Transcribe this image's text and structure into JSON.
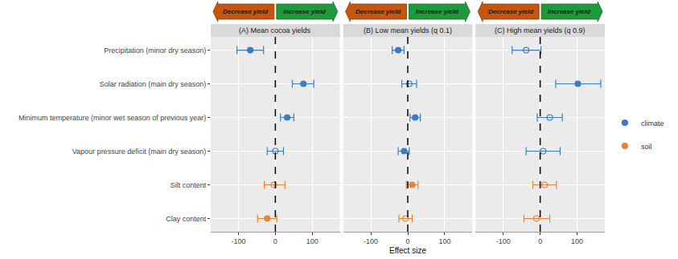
{
  "chart_data": [
    {
      "type": "scatter",
      "title": "(A) Mean cocoa yields",
      "annotations": [
        "Decrease yield",
        "Increase yield"
      ],
      "categories": [
        "Precipitation (minor dry season)",
        "Solar radiation (main dry season)",
        "Minimum temperature (minor wet season of previous year)",
        "Vapour pressure deficit (main dry season)",
        "Silt content",
        "Clay content"
      ],
      "series": [
        {
          "name": "climate",
          "color": "#3b7dbf",
          "values": [
            -68,
            76,
            32,
            0,
            null,
            null
          ],
          "lower": [
            -104,
            46,
            14,
            -22,
            null,
            null
          ],
          "upper": [
            -32,
            104,
            50,
            22,
            null,
            null
          ],
          "marker": [
            "filled",
            "filled",
            "filled",
            "open",
            null,
            null
          ]
        },
        {
          "name": "soil",
          "color": "#e8833a",
          "values": [
            null,
            null,
            null,
            null,
            -4,
            -22
          ],
          "lower": [
            null,
            null,
            null,
            null,
            -30,
            -48
          ],
          "upper": [
            null,
            null,
            null,
            null,
            26,
            4
          ],
          "marker": [
            null,
            null,
            null,
            null,
            "open",
            "filled"
          ]
        }
      ],
      "xlim": [
        -175,
        175
      ],
      "xticks": [
        -100,
        0,
        100
      ],
      "reference_x": 0,
      "grid": true,
      "legend": "right"
    },
    {
      "type": "scatter",
      "title": "(B) Low mean yields (q 0.1)",
      "xlabel": "Effect size",
      "annotations": [
        "Decrease yield",
        "Increase yield"
      ],
      "categories": [
        "Precipitation (minor dry season)",
        "Solar radiation (main dry season)",
        "Minimum temperature (minor wet season of previous year)",
        "Vapour pressure deficit (main dry season)",
        "Silt content",
        "Clay content"
      ],
      "series": [
        {
          "name": "climate",
          "color": "#3b7dbf",
          "values": [
            -26,
            4,
            20,
            -10,
            null,
            null
          ],
          "lower": [
            -42,
            -16,
            6,
            -26,
            null,
            null
          ],
          "upper": [
            -10,
            24,
            34,
            4,
            null,
            null
          ],
          "marker": [
            "filled",
            "open",
            "filled",
            "filled",
            null,
            null
          ]
        },
        {
          "name": "soil",
          "color": "#e8833a",
          "values": [
            null,
            null,
            null,
            null,
            12,
            -6
          ],
          "lower": [
            null,
            null,
            null,
            null,
            -4,
            -24
          ],
          "upper": [
            null,
            null,
            null,
            null,
            28,
            12
          ],
          "marker": [
            null,
            null,
            null,
            null,
            "filled",
            "open"
          ]
        }
      ],
      "xlim": [
        -175,
        175
      ],
      "xticks": [
        -100,
        0,
        100
      ],
      "reference_x": 0,
      "grid": true
    },
    {
      "type": "scatter",
      "title": "(C) High mean yields (q 0.9)",
      "annotations": [
        "Decrease yield",
        "Increase yield"
      ],
      "categories": [
        "Precipitation (minor dry season)",
        "Solar radiation (main dry season)",
        "Minimum temperature (minor wet season of previous year)",
        "Vapour pressure deficit (main dry season)",
        "Silt content",
        "Clay content"
      ],
      "series": [
        {
          "name": "climate",
          "color": "#3b7dbf",
          "values": [
            -38,
            102,
            26,
            8,
            null,
            null
          ],
          "lower": [
            -76,
            42,
            -8,
            -38,
            null,
            null
          ],
          "upper": [
            2,
            164,
            60,
            54,
            null,
            null
          ],
          "marker": [
            "open",
            "filled",
            "open",
            "open",
            null,
            null
          ]
        },
        {
          "name": "soil",
          "color": "#e8833a",
          "values": [
            null,
            null,
            null,
            null,
            12,
            -10
          ],
          "lower": [
            null,
            null,
            null,
            null,
            -20,
            -44
          ],
          "upper": [
            null,
            null,
            null,
            null,
            44,
            26
          ],
          "marker": [
            null,
            null,
            null,
            null,
            "open",
            "open"
          ]
        }
      ],
      "xlim": [
        -175,
        175
      ],
      "xticks": [
        -100,
        0,
        100
      ],
      "reference_x": 0,
      "grid": true
    }
  ]
}
